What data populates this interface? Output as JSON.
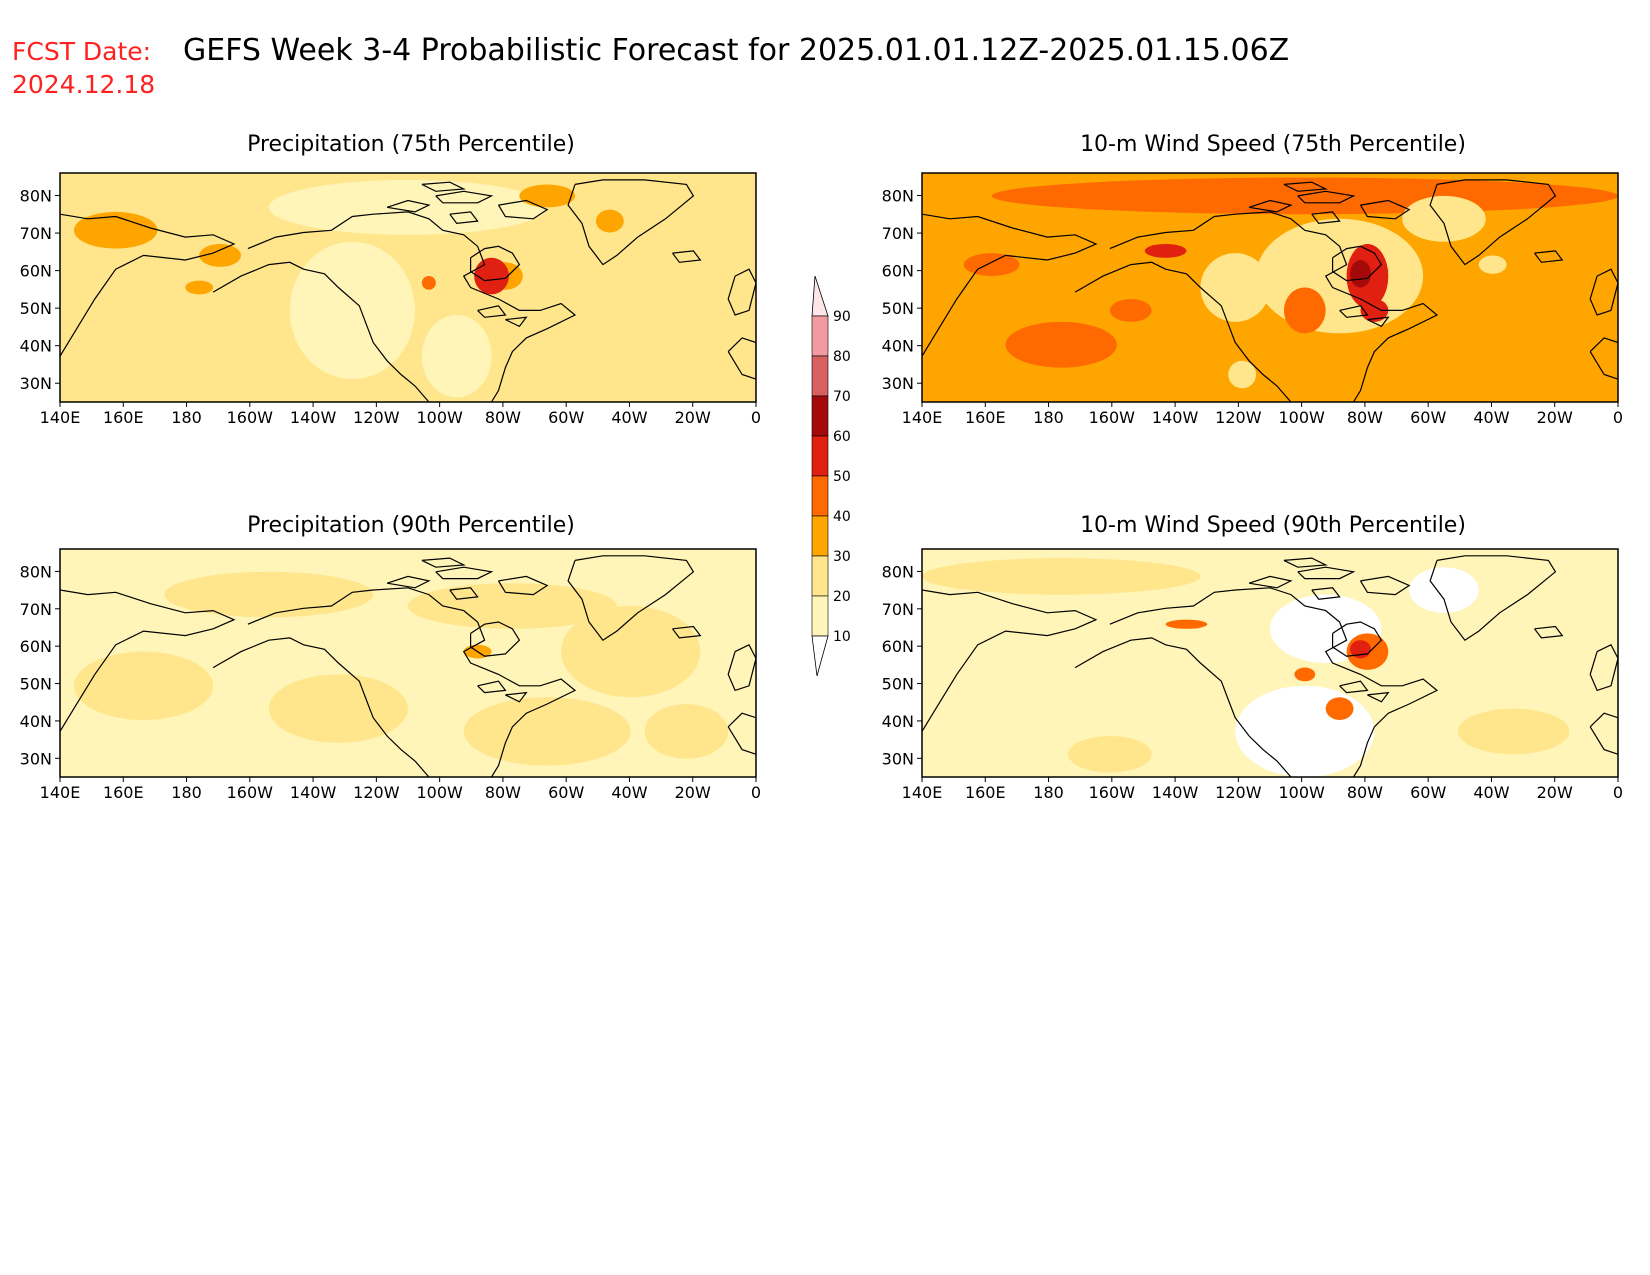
{
  "header": {
    "fcst_label": "FCST Date:",
    "fcst_date": "2024.12.18",
    "title": "GEFS Week 3-4 Probabilistic Forecast for 2025.01.01.12Z-2025.01.15.06Z",
    "label_color": "#ff2020"
  },
  "axes": {
    "lon_ticks": [
      "140E",
      "160E",
      "180",
      "160W",
      "140W",
      "120W",
      "100W",
      "80W",
      "60W",
      "40W",
      "20W",
      "0"
    ],
    "lat_ticks": [
      "80N",
      "70N",
      "60N",
      "50N",
      "40N",
      "30N"
    ]
  },
  "panels": [
    {
      "id": "precip-75",
      "title": "Precipitation (75th Percentile)",
      "background_level": 20
    },
    {
      "id": "wind-75",
      "title": "10-m Wind Speed (75th Percentile)",
      "background_level": 30
    },
    {
      "id": "precip-90",
      "title": "Precipitation (90th Percentile)",
      "background_level": 10
    },
    {
      "id": "wind-90",
      "title": "10-m Wind Speed (90th Percentile)",
      "background_level": 10
    }
  ],
  "colorbar": {
    "levels": [
      "90",
      "80",
      "70",
      "60",
      "50",
      "40",
      "30",
      "20",
      "10"
    ],
    "colors": {
      "10": "#fff5b8",
      "20": "#ffe68c",
      "30": "#ffa500",
      "40": "#ff6a00",
      "50": "#e02010",
      "60": "#a50a0a",
      "70": "#d96060",
      "80": "#f29aa0",
      "90": "#fde6e8"
    }
  }
}
